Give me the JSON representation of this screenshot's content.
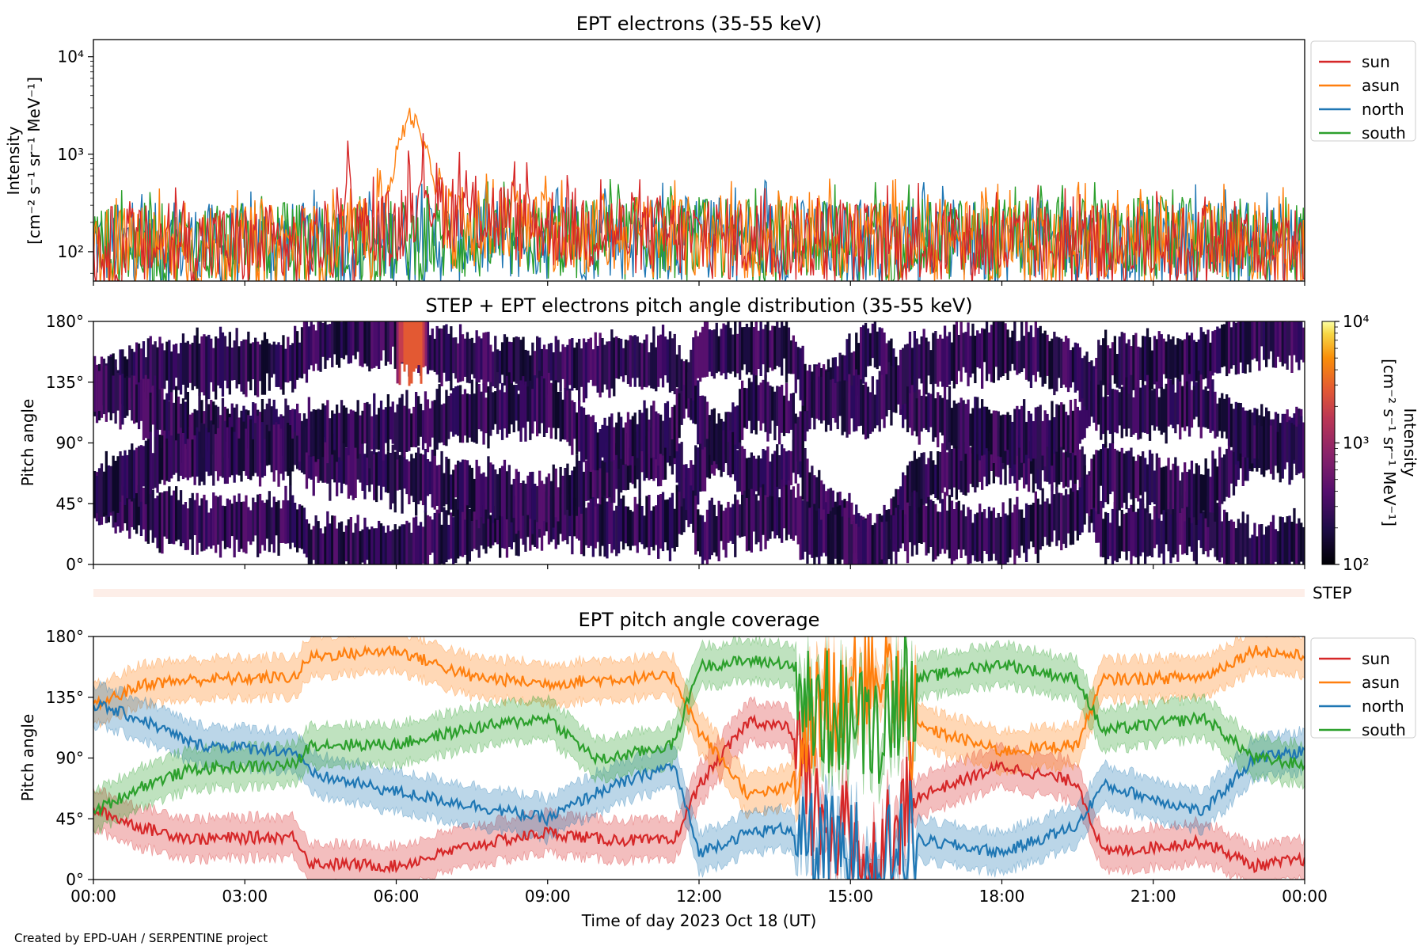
{
  "figure": {
    "credit": "Created by EPD-UAH / SERPENTINE project",
    "xlabel": "Time of day 2023 Oct 18 (UT)",
    "time_ticks": [
      "00:00",
      "03:00",
      "06:00",
      "09:00",
      "12:00",
      "15:00",
      "18:00",
      "21:00",
      "00:00"
    ]
  },
  "colors": {
    "sun": "#d62728",
    "asun": "#ff7f0e",
    "north": "#1f77b4",
    "south": "#2ca02c"
  },
  "chart_data": [
    {
      "type": "line",
      "title": "EPT electrons (35-55 keV)",
      "ylabel_line1": "Intensity",
      "ylabel_line2": "[cm⁻² s⁻¹ sr⁻¹ MeV⁻¹]",
      "yscale": "log",
      "ylim": [
        50,
        15000
      ],
      "yticks": [
        "10²",
        "10³",
        "10⁴"
      ],
      "x_hours": [
        0,
        24
      ],
      "legend": [
        "sun",
        "asun",
        "north",
        "south"
      ],
      "legend_position": "outside-right",
      "series": [
        {
          "name": "sun",
          "x": [
            0,
            2,
            4,
            5,
            5.05,
            5.1,
            6,
            6.5,
            7,
            9,
            12,
            15,
            18,
            21,
            24
          ],
          "y": [
            120,
            130,
            120,
            150,
            1500,
            140,
            180,
            450,
            300,
            200,
            150,
            140,
            130,
            130,
            120
          ]
        },
        {
          "name": "asun",
          "x": [
            0,
            3,
            5.5,
            5.9,
            6.1,
            6.3,
            6.5,
            6.8,
            7,
            9,
            12,
            15,
            18,
            21,
            24
          ],
          "y": [
            120,
            120,
            140,
            500,
            1500,
            2700,
            1300,
            450,
            200,
            180,
            150,
            150,
            140,
            140,
            130
          ]
        },
        {
          "name": "north",
          "x": [
            0,
            3,
            6,
            9,
            12,
            15,
            18,
            21,
            24
          ],
          "y": [
            130,
            130,
            140,
            150,
            150,
            140,
            140,
            140,
            130
          ]
        },
        {
          "name": "south",
          "x": [
            0,
            3,
            6,
            9,
            12,
            15,
            18,
            21,
            24
          ],
          "y": [
            130,
            130,
            140,
            150,
            150,
            140,
            150,
            150,
            140
          ]
        }
      ]
    },
    {
      "type": "heatmap",
      "title": "STEP + EPT electrons pitch angle distribution (35-55 keV)",
      "ylabel": "Pitch angle",
      "ylim": [
        0,
        180
      ],
      "yticks": [
        "0°",
        "45°",
        "90°",
        "135°",
        "180°"
      ],
      "colorbar": {
        "label_line1": "Intensity",
        "label_line2": "[cm⁻² s⁻¹ sr⁻¹ MeV⁻¹]",
        "scale": "log",
        "range": [
          100,
          10000
        ],
        "ticks": [
          "10²",
          "10³",
          "10⁴"
        ],
        "colormap": "inferno"
      },
      "background_intensity": 150,
      "hotspot": {
        "x_hours": [
          6.0,
          6.6
        ],
        "pitch_angle": [
          130,
          180
        ],
        "intensity": 1200
      }
    },
    {
      "type": "bar",
      "label": "STEP",
      "color": "#fdeee8"
    },
    {
      "type": "area",
      "title": "EPT pitch angle coverage",
      "ylabel": "Pitch angle",
      "ylim": [
        0,
        180
      ],
      "yticks": [
        "0°",
        "45°",
        "90°",
        "135°",
        "180°"
      ],
      "legend": [
        "sun",
        "asun",
        "north",
        "south"
      ],
      "legend_position": "outside-right",
      "band_halfwidth_deg": 15,
      "series": [
        {
          "name": "sun",
          "x": [
            0,
            1,
            2,
            4,
            4.3,
            6,
            7.5,
            9,
            10,
            11.5,
            12,
            13,
            13.8,
            14.2,
            15.5,
            16.2,
            18,
            19.5,
            20,
            22,
            23,
            24
          ],
          "y": [
            52,
            38,
            30,
            32,
            12,
            10,
            25,
            35,
            30,
            28,
            70,
            118,
            112,
            55,
            8,
            60,
            84,
            72,
            20,
            28,
            10,
            15
          ]
        },
        {
          "name": "asun",
          "x": [
            0,
            1,
            2,
            4,
            4.3,
            6,
            7.5,
            9,
            10,
            11.5,
            12,
            13,
            13.8,
            14.2,
            15.5,
            16.2,
            18,
            19.5,
            20,
            22,
            23,
            24
          ],
          "y": [
            128,
            145,
            148,
            150,
            165,
            170,
            150,
            145,
            148,
            150,
            110,
            62,
            68,
            120,
            165,
            115,
            95,
            100,
            148,
            150,
            170,
            165
          ]
        },
        {
          "name": "north",
          "x": [
            0,
            1,
            2,
            4,
            4.3,
            6,
            7.5,
            9,
            10,
            11.5,
            12,
            13,
            13.8,
            14.2,
            15.5,
            16.2,
            18,
            19.5,
            20,
            22,
            23,
            24
          ],
          "y": [
            130,
            118,
            100,
            95,
            78,
            65,
            55,
            45,
            65,
            85,
            20,
            35,
            38,
            25,
            12,
            30,
            20,
            40,
            70,
            50,
            90,
            95
          ]
        },
        {
          "name": "south",
          "x": [
            0,
            1,
            2,
            4,
            4.3,
            6,
            7.5,
            9,
            10,
            11.5,
            12,
            13,
            13.8,
            14.2,
            15.5,
            16.2,
            18,
            19.5,
            20,
            22,
            23,
            24
          ],
          "y": [
            50,
            70,
            82,
            85,
            100,
            100,
            112,
            120,
            88,
            100,
            158,
            162,
            160,
            125,
            115,
            148,
            160,
            148,
            110,
            120,
            90,
            85
          ]
        }
      ]
    }
  ]
}
